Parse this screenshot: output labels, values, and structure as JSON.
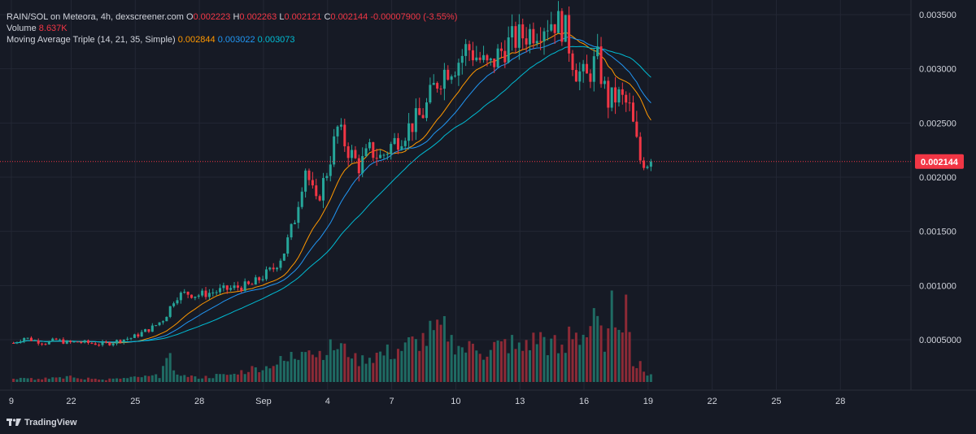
{
  "legend": {
    "symbol": "RAIN/SOL on Meteora, 4h, dexscreener.com",
    "o_label": "O",
    "o_value": "0.002223",
    "h_label": "H",
    "h_value": "0.002263",
    "l_label": "L",
    "l_value": "0.002121",
    "c_label": "C",
    "c_value": "0.002144",
    "change": "-0.00007900 (-3.55%)",
    "volume_label": "Volume",
    "volume_value": "8.637K",
    "ma_label": "Moving Average Triple (14, 21, 35, Simple)",
    "ma1_value": "0.002844",
    "ma2_value": "0.003022",
    "ma3_value": "0.003073"
  },
  "footer": {
    "brand": "TradingView"
  },
  "colors": {
    "background": "#161a25",
    "grid": "#232734",
    "up": "#26a69a",
    "down": "#f23645",
    "ma1": "#ff9800",
    "ma2": "#2196f3",
    "ma3": "#00bcd4",
    "text": "#d1d4dc",
    "up_volume": "#1f6b63",
    "down_volume": "#8c2a36"
  },
  "chart_data": {
    "type": "candlestick",
    "title": "RAIN/SOL on Meteora, 4h, dexscreener.com",
    "timeframe": "4h",
    "y_ticks": [
      "0.0005000",
      "0.001000",
      "0.001500",
      "0.002000",
      "0.002500",
      "0.003000",
      "0.003500"
    ],
    "y_tick_values": [
      0.0005,
      0.001,
      0.0015,
      0.002,
      0.0025,
      0.003,
      0.0035
    ],
    "ylim": [
      0.0002,
      0.0038
    ],
    "x_ticks": [
      "9",
      "22",
      "25",
      "28",
      "Sep",
      "4",
      "7",
      "10",
      "13",
      "16",
      "19",
      "22",
      "25",
      "28"
    ],
    "x_tick_days": [
      -0.1,
      2.7,
      5.7,
      8.7,
      11.7,
      14.7,
      17.7,
      20.7,
      23.7,
      26.7,
      29.7,
      32.7,
      35.7,
      38.7
    ],
    "x_range_days": [
      -0.25,
      42
    ],
    "current_price": 0.002144,
    "current_price_label": "0.002144",
    "bars_per_day": 6,
    "close_path": [
      0.00047,
      0.00052,
      0.00049,
      0.00047,
      0.0005,
      0.00047,
      0.00048,
      0.00047,
      0.00046,
      0.00047,
      0.0005,
      0.00052,
      0.00057,
      0.00062,
      0.0007,
      0.0009,
      0.00093,
      0.00091,
      0.00093,
      0.00095,
      0.00097,
      0.00099,
      0.001,
      0.00108,
      0.00115,
      0.0013,
      0.0016,
      0.0021,
      0.00175,
      0.00205,
      0.00245,
      0.00225,
      0.0021,
      0.00225,
      0.00218,
      0.0023,
      0.0024,
      0.0025,
      0.0026,
      0.00285,
      0.003,
      0.00305,
      0.0032,
      0.0031,
      0.003,
      0.00315,
      0.00325,
      0.0033,
      0.00335,
      0.00342,
      0.00345,
      0.00338,
      0.003,
      0.0029,
      0.0031,
      0.0027,
      0.00275,
      0.00264,
      0.00216,
      0.00214
    ],
    "volume_heights": [
      5,
      7,
      4,
      6,
      5,
      8,
      4,
      6,
      3,
      4,
      5,
      6,
      7,
      8,
      30,
      12,
      8,
      6,
      7,
      9,
      10,
      14,
      18,
      20,
      25,
      28,
      35,
      55,
      40,
      45,
      48,
      42,
      30,
      35,
      38,
      40,
      45,
      52,
      58,
      65,
      70,
      55,
      45,
      50,
      40,
      48,
      52,
      45,
      55,
      60,
      50,
      42,
      70,
      65,
      78,
      60,
      95,
      100,
      22,
      12
    ]
  }
}
